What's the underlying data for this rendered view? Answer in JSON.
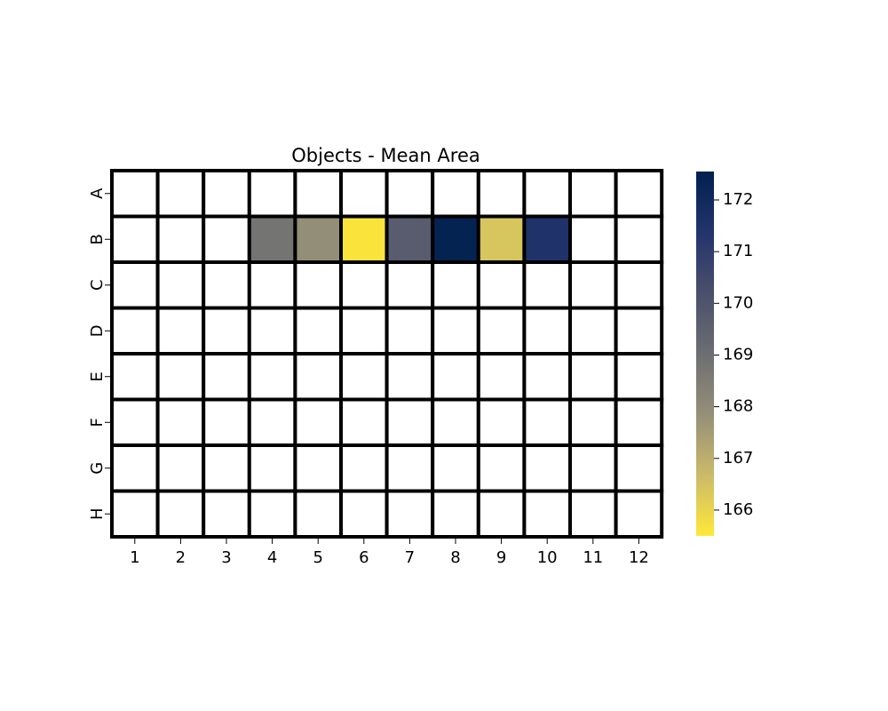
{
  "chart_data": {
    "type": "heatmap",
    "title": "Objects - Mean Area",
    "xlabel": "",
    "ylabel": "",
    "x_categories": [
      "1",
      "2",
      "3",
      "4",
      "5",
      "6",
      "7",
      "8",
      "9",
      "10",
      "11",
      "12"
    ],
    "y_categories": [
      "A",
      "B",
      "C",
      "D",
      "E",
      "F",
      "G",
      "H"
    ],
    "values": [
      [
        null,
        null,
        null,
        null,
        null,
        null,
        null,
        null,
        null,
        null,
        null,
        null
      ],
      [
        null,
        null,
        null,
        168.8,
        167.9,
        165.6,
        169.7,
        172.4,
        166.4,
        171.5,
        null,
        null
      ],
      [
        null,
        null,
        null,
        null,
        null,
        null,
        null,
        null,
        null,
        null,
        null,
        null
      ],
      [
        null,
        null,
        null,
        null,
        null,
        null,
        null,
        null,
        null,
        null,
        null,
        null
      ],
      [
        null,
        null,
        null,
        null,
        null,
        null,
        null,
        null,
        null,
        null,
        null,
        null
      ],
      [
        null,
        null,
        null,
        null,
        null,
        null,
        null,
        null,
        null,
        null,
        null,
        null
      ],
      [
        null,
        null,
        null,
        null,
        null,
        null,
        null,
        null,
        null,
        null,
        null,
        null
      ],
      [
        null,
        null,
        null,
        null,
        null,
        null,
        null,
        null,
        null,
        null,
        null,
        null
      ]
    ],
    "colormap": "cividis (reversed)",
    "colormap_stops": [
      "#fee838",
      "#cbba69",
      "#958f78",
      "#6c6e72",
      "#4a4f6b",
      "#23346d",
      "#00204d"
    ],
    "missing_color": "#ffffff",
    "cell_border_color": "#000000",
    "colorbar": {
      "range": [
        165.5,
        172.55
      ],
      "ticks": [
        166,
        167,
        168,
        169,
        170,
        171,
        172
      ],
      "placement": "right"
    },
    "grid": false,
    "legend": "none"
  }
}
